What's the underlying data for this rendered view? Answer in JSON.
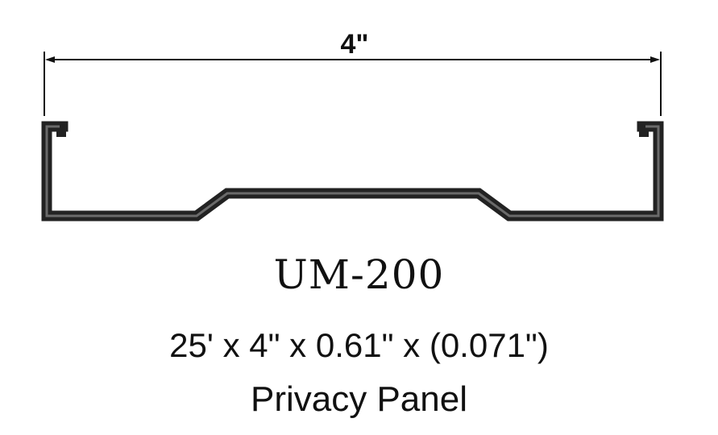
{
  "diagram": {
    "width_dimension": "4\"",
    "model": "UM-200",
    "specification": "25' x 4\" x 0.61\" x (0.071\")",
    "product_name": "Privacy Panel",
    "colors": {
      "line": "#111111",
      "profile_fill": "#222222",
      "profile_inner": "#6a6a6a",
      "background": "#ffffff"
    }
  }
}
